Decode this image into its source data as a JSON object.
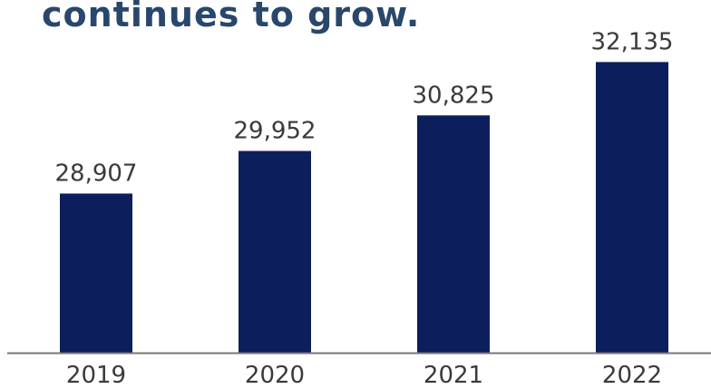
{
  "title": "continues to grow.",
  "colors": {
    "bar": "#0c1f5c",
    "title": "#28476b",
    "axis": "#777777",
    "label": "#3a3a3a"
  },
  "chart_data": {
    "type": "bar",
    "categories": [
      "2019",
      "2020",
      "2021",
      "2022"
    ],
    "values": [
      28907,
      29952,
      30825,
      32135
    ],
    "value_labels": [
      "28,907",
      "29,952",
      "30,825",
      "32,135"
    ],
    "ylim": [
      25000,
      32500
    ]
  }
}
